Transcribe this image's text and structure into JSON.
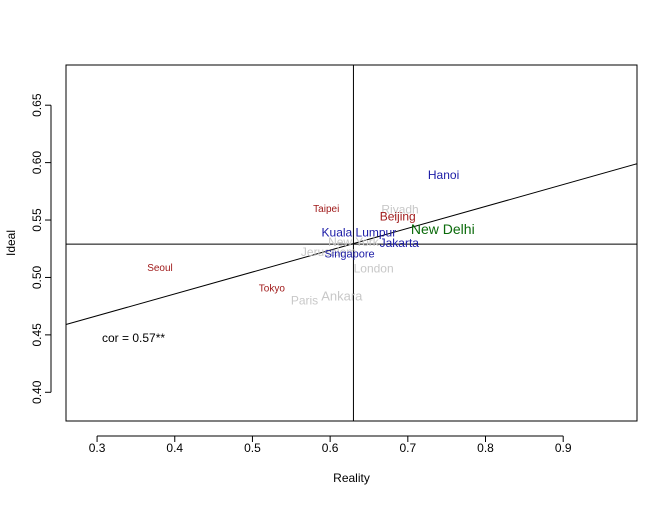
{
  "chart_data": {
    "type": "scatter",
    "title": "",
    "xlabel": "Reality",
    "ylabel": "Ideal",
    "xlim": [
      0.26,
      0.995
    ],
    "ylim": [
      0.375,
      0.685
    ],
    "x_ticks": [
      "0.3",
      "0.4",
      "0.5",
      "0.6",
      "0.7",
      "0.8",
      "0.9"
    ],
    "y_ticks": [
      "0.40",
      "0.45",
      "0.50",
      "0.55",
      "0.60",
      "0.65"
    ],
    "reference_lines": {
      "vertical_x": 0.63,
      "horizontal_y": 0.529
    },
    "regression_line": {
      "x": [
        0.26,
        0.995
      ],
      "y": [
        0.459,
        0.599
      ]
    },
    "annotation": "cor = 0.57**",
    "points": [
      {
        "label": "Hanoi",
        "x": 0.746,
        "y": 0.589,
        "color": "#1a1aa6",
        "size": 12
      },
      {
        "label": "Riyadh",
        "x": 0.69,
        "y": 0.559,
        "color": "#c8c8c8",
        "size": 12
      },
      {
        "label": "Taipei",
        "x": 0.595,
        "y": 0.559,
        "color": "#a01a1a",
        "size": 10
      },
      {
        "label": "Beijing",
        "x": 0.687,
        "y": 0.553,
        "color": "#a01a1a",
        "size": 12
      },
      {
        "label": "New Delhi",
        "x": 0.745,
        "y": 0.542,
        "color": "#0a6a0a",
        "size": 14
      },
      {
        "label": "Kuala Lumpur",
        "x": 0.637,
        "y": 0.539,
        "color": "#1a1aa6",
        "size": 12
      },
      {
        "label": "New York",
        "x": 0.63,
        "y": 0.531,
        "color": "#c8c8c8",
        "size": 12
      },
      {
        "label": "Jakarta",
        "x": 0.689,
        "y": 0.53,
        "color": "#1a1aa6",
        "size": 12
      },
      {
        "label": "Jerusalem",
        "x": 0.598,
        "y": 0.522,
        "color": "#c8c8c8",
        "size": 12
      },
      {
        "label": "Singapore",
        "x": 0.625,
        "y": 0.52,
        "color": "#1a1aa6",
        "size": 11
      },
      {
        "label": "London",
        "x": 0.656,
        "y": 0.508,
        "color": "#c8c8c8",
        "size": 12
      },
      {
        "label": "Seoul",
        "x": 0.381,
        "y": 0.508,
        "color": "#a01a1a",
        "size": 10
      },
      {
        "label": "Tokyo",
        "x": 0.525,
        "y": 0.49,
        "color": "#a01a1a",
        "size": 10
      },
      {
        "label": "Ankara",
        "x": 0.615,
        "y": 0.484,
        "color": "#c8c8c8",
        "size": 13
      },
      {
        "label": "Paris",
        "x": 0.567,
        "y": 0.48,
        "color": "#c8c8c8",
        "size": 12
      }
    ]
  }
}
